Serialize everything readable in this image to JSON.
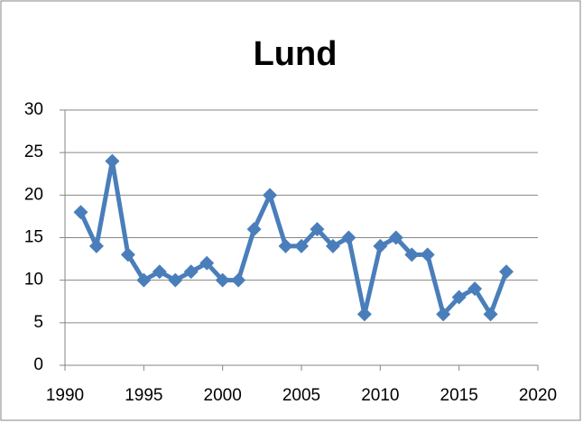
{
  "chart_data": {
    "type": "line",
    "title": "Lund",
    "x": [
      1991,
      1992,
      1993,
      1994,
      1995,
      1996,
      1997,
      1998,
      1999,
      2000,
      2001,
      2002,
      2003,
      2004,
      2005,
      2006,
      2007,
      2008,
      2009,
      2010,
      2011,
      2012,
      2013,
      2014,
      2015,
      2016,
      2017,
      2018
    ],
    "values": [
      18,
      14,
      24,
      13,
      10,
      11,
      10,
      11,
      12,
      10,
      10,
      16,
      20,
      14,
      14,
      16,
      14,
      15,
      6,
      14,
      15,
      13,
      13,
      6,
      8,
      9,
      6,
      11
    ],
    "color": "#4a7ebb",
    "xlim": [
      1990,
      2020
    ],
    "xticks": [
      1990,
      1995,
      2000,
      2005,
      2010,
      2015,
      2020
    ],
    "ylim": [
      0,
      30
    ],
    "yticks": [
      0,
      5,
      10,
      15,
      20,
      25,
      30
    ],
    "grid": true
  }
}
